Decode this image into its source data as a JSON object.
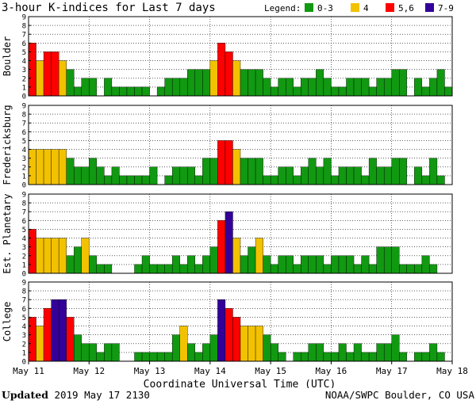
{
  "chart_data": {
    "type": "bar",
    "title": "3-hour K-indices for Last 7 days",
    "legend_title": "Legend:",
    "legend": [
      {
        "label": "0-3",
        "color": "#119911"
      },
      {
        "label": "4",
        "color": "#f2c200"
      },
      {
        "label": "5,6",
        "color": "#ff0000"
      },
      {
        "label": "7-9",
        "color": "#330099"
      }
    ],
    "xlabel": "Coordinate Universal Time (UTC)",
    "x_ticks": [
      "May 11",
      "May 12",
      "May 13",
      "May 14",
      "May 15",
      "May 16",
      "May 17",
      "May 18"
    ],
    "ylim": [
      0,
      9
    ],
    "y_ticks": [
      "0",
      "1",
      "2",
      "3",
      "4",
      "5",
      "6",
      "7",
      "8",
      "9"
    ],
    "grid": true,
    "series": [
      {
        "name": "Boulder",
        "values": [
          6,
          4,
          5,
          5,
          4,
          3,
          1,
          2,
          2,
          0,
          2,
          1,
          1,
          1,
          1,
          1,
          0,
          1,
          2,
          2,
          2,
          3,
          3,
          3,
          4,
          6,
          5,
          4,
          3,
          3,
          3,
          2,
          1,
          2,
          2,
          1,
          2,
          2,
          3,
          2,
          1,
          1,
          2,
          2,
          2,
          1,
          2,
          2,
          3,
          3,
          0,
          2,
          1,
          2,
          3,
          1,
          0
        ]
      },
      {
        "name": "Fredericksburg",
        "values": [
          4,
          4,
          4,
          4,
          4,
          3,
          2,
          2,
          3,
          2,
          1,
          2,
          1,
          1,
          1,
          1,
          2,
          0,
          1,
          2,
          2,
          2,
          1,
          3,
          3,
          5,
          5,
          4,
          3,
          3,
          3,
          1,
          1,
          2,
          2,
          1,
          2,
          3,
          2,
          3,
          1,
          2,
          2,
          2,
          1,
          3,
          2,
          2,
          3,
          3,
          0,
          2,
          1,
          3,
          1,
          0
        ]
      },
      {
        "name": "Est. Planetary",
        "values": [
          5,
          4,
          4,
          4,
          4,
          2,
          3,
          4,
          2,
          1,
          1,
          0,
          0,
          0,
          1,
          2,
          1,
          1,
          1,
          2,
          1,
          2,
          1,
          2,
          3,
          6,
          7,
          4,
          2,
          3,
          4,
          2,
          1,
          2,
          2,
          1,
          2,
          2,
          2,
          1,
          2,
          2,
          2,
          1,
          2,
          1,
          3,
          3,
          3,
          1,
          1,
          1,
          2,
          1,
          0,
          0
        ]
      },
      {
        "name": "College",
        "values": [
          5,
          4,
          6,
          7,
          7,
          5,
          3,
          2,
          2,
          1,
          2,
          2,
          0,
          0,
          1,
          1,
          1,
          1,
          1,
          3,
          4,
          2,
          1,
          2,
          3,
          7,
          6,
          5,
          4,
          4,
          4,
          3,
          2,
          1,
          0,
          1,
          1,
          2,
          2,
          1,
          1,
          2,
          1,
          2,
          1,
          1,
          2,
          2,
          3,
          1,
          0,
          1,
          1,
          2,
          1,
          0,
          0
        ]
      }
    ],
    "color_scale": {
      "low": "#119911",
      "k4": "#f2c200",
      "k56": "#ff0000",
      "k79": "#330099"
    }
  },
  "footer": {
    "updated_label": "Updated",
    "updated_date": "2019 May 17 2130",
    "source": "NOAA/SWPC Boulder, CO USA"
  }
}
